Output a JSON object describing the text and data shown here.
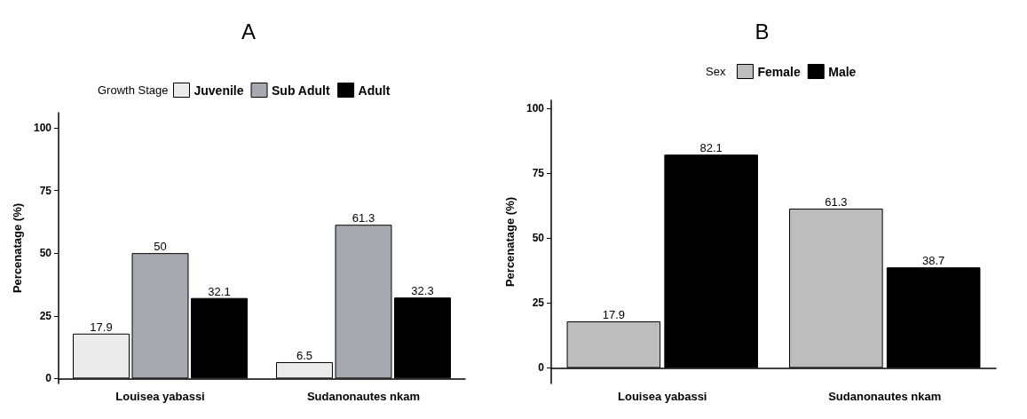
{
  "chart_data": [
    {
      "type": "bar",
      "title": "A",
      "legend_title": "Growth Stage",
      "ylabel": "Percenatage (%)",
      "categories": [
        "Louisea yabassi",
        "Sudanonautes nkam"
      ],
      "series": [
        {
          "name": "Juvenile",
          "color": "#ebebeb",
          "values": [
            17.9,
            6.5
          ]
        },
        {
          "name": "Sub Adult",
          "color": "#a7a9b0",
          "values": [
            50,
            61.3
          ]
        },
        {
          "name": "Adult",
          "color": "#000000",
          "values": [
            32.1,
            32.3
          ]
        }
      ],
      "ylim": [
        -2,
        106
      ],
      "yticks": [
        0,
        25,
        50,
        75,
        100
      ],
      "data_labels": true,
      "legend": "top",
      "grid": false
    },
    {
      "type": "bar",
      "title": "B",
      "legend_title": "Sex",
      "ylabel": "Percenatage (%)",
      "categories": [
        "Louisea yabassi",
        "Sudanonautes nkam"
      ],
      "series": [
        {
          "name": "Female",
          "color": "#bdbdbd",
          "values": [
            17.9,
            61.3
          ]
        },
        {
          "name": "Male",
          "color": "#000000",
          "values": [
            82.1,
            38.7
          ]
        }
      ],
      "ylim": [
        -6,
        103
      ],
      "yticks": [
        0,
        25,
        50,
        75,
        100
      ],
      "data_labels": true,
      "legend": "top",
      "grid": false
    }
  ]
}
